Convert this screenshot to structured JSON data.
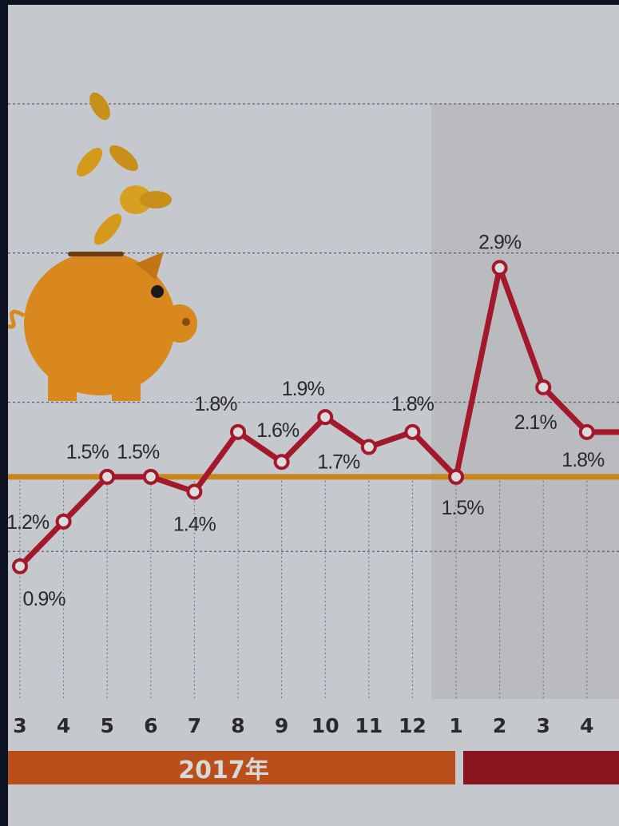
{
  "chart_data": {
    "type": "line",
    "categories": [
      "3",
      "4",
      "5",
      "6",
      "7",
      "8",
      "9",
      "10",
      "11",
      "12",
      "1",
      "2",
      "3",
      "4",
      null
    ],
    "series": [
      {
        "color": "#a3182a",
        "values": [
          0.9,
          1.2,
          1.5,
          1.5,
          1.4,
          1.8,
          1.6,
          1.9,
          1.7,
          1.8,
          1.5,
          2.9,
          2.1,
          1.8,
          1.8
        ],
        "value_labels": [
          "0.9%",
          "1.2%",
          "1.5%",
          "1.5%",
          "1.4%",
          "1.8%",
          "1.6%",
          "1.9%",
          "1.7%",
          "1.8%",
          "1.5%",
          "2.9%",
          "2.1%",
          "1.8%",
          null
        ]
      }
    ],
    "ylim": [
      0,
      4
    ],
    "yticks": [
      1,
      2,
      3,
      4
    ],
    "ytick_labels": false,
    "grid": true,
    "reference_line": {
      "value": 1.5,
      "color": "#c8861c"
    },
    "year_band": {
      "label": "2017年",
      "color": "#b9501c"
    }
  }
}
